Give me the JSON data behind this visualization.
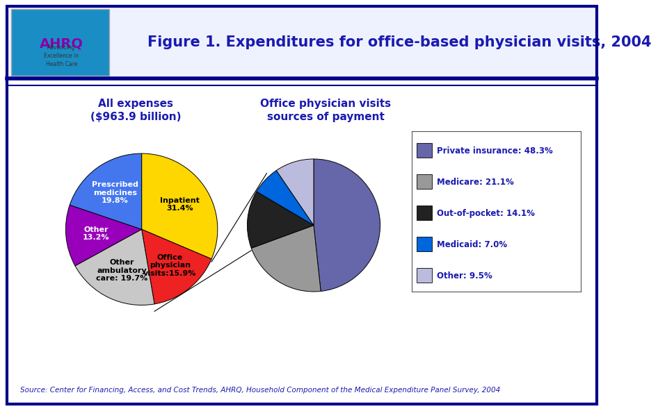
{
  "title": "Figure 1. Expenditures for office-based physician visits, 2004",
  "title_color": "#1a1ab0",
  "background_color": "#ffffff",
  "border_color": "#00008B",
  "footer_text": "Source: Center for Financing, Access, and Cost Trends, AHRQ, Household Component of the Medical Expenditure Panel Survey, 2004",
  "left_pie_title_line1": "All expenses",
  "left_pie_title_line2": "($963.9 billion)",
  "left_pie_values": [
    31.4,
    15.9,
    19.7,
    13.2,
    19.8
  ],
  "left_pie_labels": [
    "Inpatient\n31.4%",
    "Office\nphysician\nvisits:15.9%",
    "Other\nambulatory\ncare: 19.7%",
    "Other\n13.2%",
    "Prescribed\nmedicines\n19.8%"
  ],
  "left_pie_colors": [
    "#FFD700",
    "#EE2222",
    "#C8C8C8",
    "#9900BB",
    "#4477EE"
  ],
  "left_pie_label_colors": [
    "#000000",
    "#000000",
    "#000000",
    "#ffffff",
    "#ffffff"
  ],
  "right_pie_title_line1": "Office physician visits",
  "right_pie_title_line2": "sources of payment",
  "right_pie_values": [
    48.3,
    21.1,
    14.1,
    7.0,
    9.5
  ],
  "right_pie_colors": [
    "#6666AA",
    "#999999",
    "#222222",
    "#0066DD",
    "#BBBBDD"
  ],
  "legend_labels": [
    "Private insurance: 48.3%",
    "Medicare: 21.1%",
    "Out-of-pocket: 14.1%",
    "Medicaid: 7.0%",
    "Other: 9.5%"
  ],
  "legend_colors": [
    "#6666AA",
    "#999999",
    "#222222",
    "#0066DD",
    "#BBBBDD"
  ],
  "subtitle_fontsize": 11,
  "title_fontsize": 15,
  "label_fontsize": 8,
  "legend_fontsize": 8.5,
  "footer_fontsize": 7.5
}
